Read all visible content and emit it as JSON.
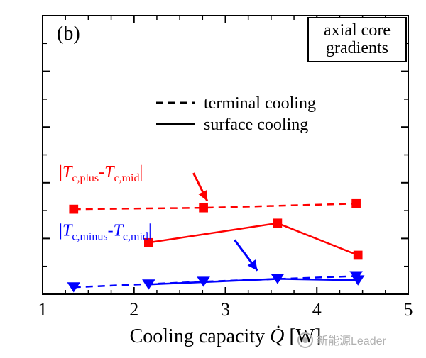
{
  "chart": {
    "type": "line",
    "panel_label": "(b)",
    "title_box": {
      "line1": "axial core",
      "line2": "gradients",
      "border_color": "#000000",
      "bg": "#ffffff"
    },
    "x_axis": {
      "label_prefix": "Cooling capacity ",
      "label_var": "Q̇",
      "label_unit": " [W]",
      "lim": [
        1,
        5
      ],
      "ticks": [
        1,
        2,
        3,
        4,
        5
      ],
      "minor_n": 3
    },
    "y_axis": {
      "lim": [
        0,
        10
      ],
      "ticks_pos": [
        0,
        2,
        4,
        6,
        8,
        10
      ],
      "minor_n": 1
    },
    "legend": {
      "dash_label": "terminal cooling",
      "solid_label": "surface cooling",
      "dash_color": "#000000",
      "solid_color": "#000000"
    },
    "series": [
      {
        "id": "plus_terminal",
        "color": "#ff0000",
        "dash": true,
        "marker": "square",
        "x": [
          1.34,
          2.76,
          4.43
        ],
        "y": [
          3.05,
          3.1,
          3.25
        ]
      },
      {
        "id": "plus_surface",
        "color": "#ff0000",
        "dash": false,
        "marker": "square",
        "x": [
          2.16,
          3.57,
          4.45
        ],
        "y": [
          1.85,
          2.55,
          1.4
        ]
      },
      {
        "id": "minus_terminal",
        "color": "#0000ff",
        "dash": true,
        "marker": "triangle-down",
        "x": [
          1.34,
          2.76,
          4.43
        ],
        "y": [
          0.25,
          0.45,
          0.65
        ]
      },
      {
        "id": "minus_surface",
        "color": "#0000ff",
        "dash": false,
        "marker": "triangle-down",
        "x": [
          2.16,
          3.57,
          4.45
        ],
        "y": [
          0.35,
          0.55,
          0.5
        ]
      }
    ],
    "series_labels": {
      "plus": {
        "parts": [
          "|",
          "T",
          "c,plus",
          "-",
          "T",
          "c,mid",
          "|"
        ],
        "color": "#ff0000"
      },
      "minus": {
        "parts": [
          "|",
          "T",
          "c,minus",
          "-",
          "T",
          "c,mid",
          "|"
        ],
        "color": "#0000ff"
      }
    },
    "arrows": {
      "plus": {
        "from": [
          2.65,
          4.35
        ],
        "to": [
          2.8,
          3.35
        ],
        "color": "#ff0000"
      },
      "minus": {
        "from": [
          3.1,
          1.95
        ],
        "to": [
          3.35,
          0.85
        ],
        "color": "#0000ff"
      }
    },
    "styling": {
      "line_width": 2.5,
      "marker_size": 9,
      "tick_len_major": 10,
      "tick_len_minor": 6,
      "axis_width": 2,
      "dash_pattern": "10,7"
    }
  },
  "watermark": {
    "text": "新能源Leader",
    "color": "#b0b0b0"
  }
}
